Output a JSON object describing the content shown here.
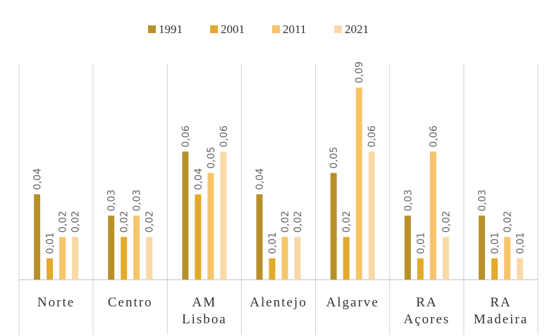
{
  "chart_data": {
    "type": "bar",
    "categories": [
      "Norte",
      "Centro",
      "AM Lisboa",
      "Alentejo",
      "Algarve",
      "RA Açores",
      "RA Madeira"
    ],
    "series": [
      {
        "name": "1991",
        "color": "#b8902a",
        "values": [
          0.04,
          0.03,
          0.06,
          0.04,
          0.05,
          0.03,
          0.03
        ],
        "value_labels": [
          "0,04",
          "0,03",
          "0,06",
          "0,04",
          "0,05",
          "0,03",
          "0,03"
        ]
      },
      {
        "name": "2001",
        "color": "#e3a92a",
        "values": [
          0.01,
          0.02,
          0.04,
          0.01,
          0.02,
          0.01,
          0.01
        ],
        "value_labels": [
          "0,01",
          "0,02",
          "0,04",
          "0,01",
          "0,02",
          "0,01",
          "0,01"
        ]
      },
      {
        "name": "2011",
        "color": "#f7c46a",
        "values": [
          0.02,
          0.03,
          0.05,
          0.02,
          0.09,
          0.06,
          0.02
        ],
        "value_labels": [
          "0,02",
          "0,03",
          "0,05",
          "0,02",
          "0,09",
          "0,06",
          "0,02"
        ]
      },
      {
        "name": "2021",
        "color": "#f9d9a8",
        "values": [
          0.02,
          0.02,
          0.06,
          0.02,
          0.06,
          0.02,
          0.01
        ],
        "value_labels": [
          "0,02",
          "0,02",
          "0,06",
          "0,02",
          "0,06",
          "0,02",
          "0,01"
        ]
      }
    ],
    "ylim": [
      0,
      0.1
    ],
    "legend": "top"
  }
}
